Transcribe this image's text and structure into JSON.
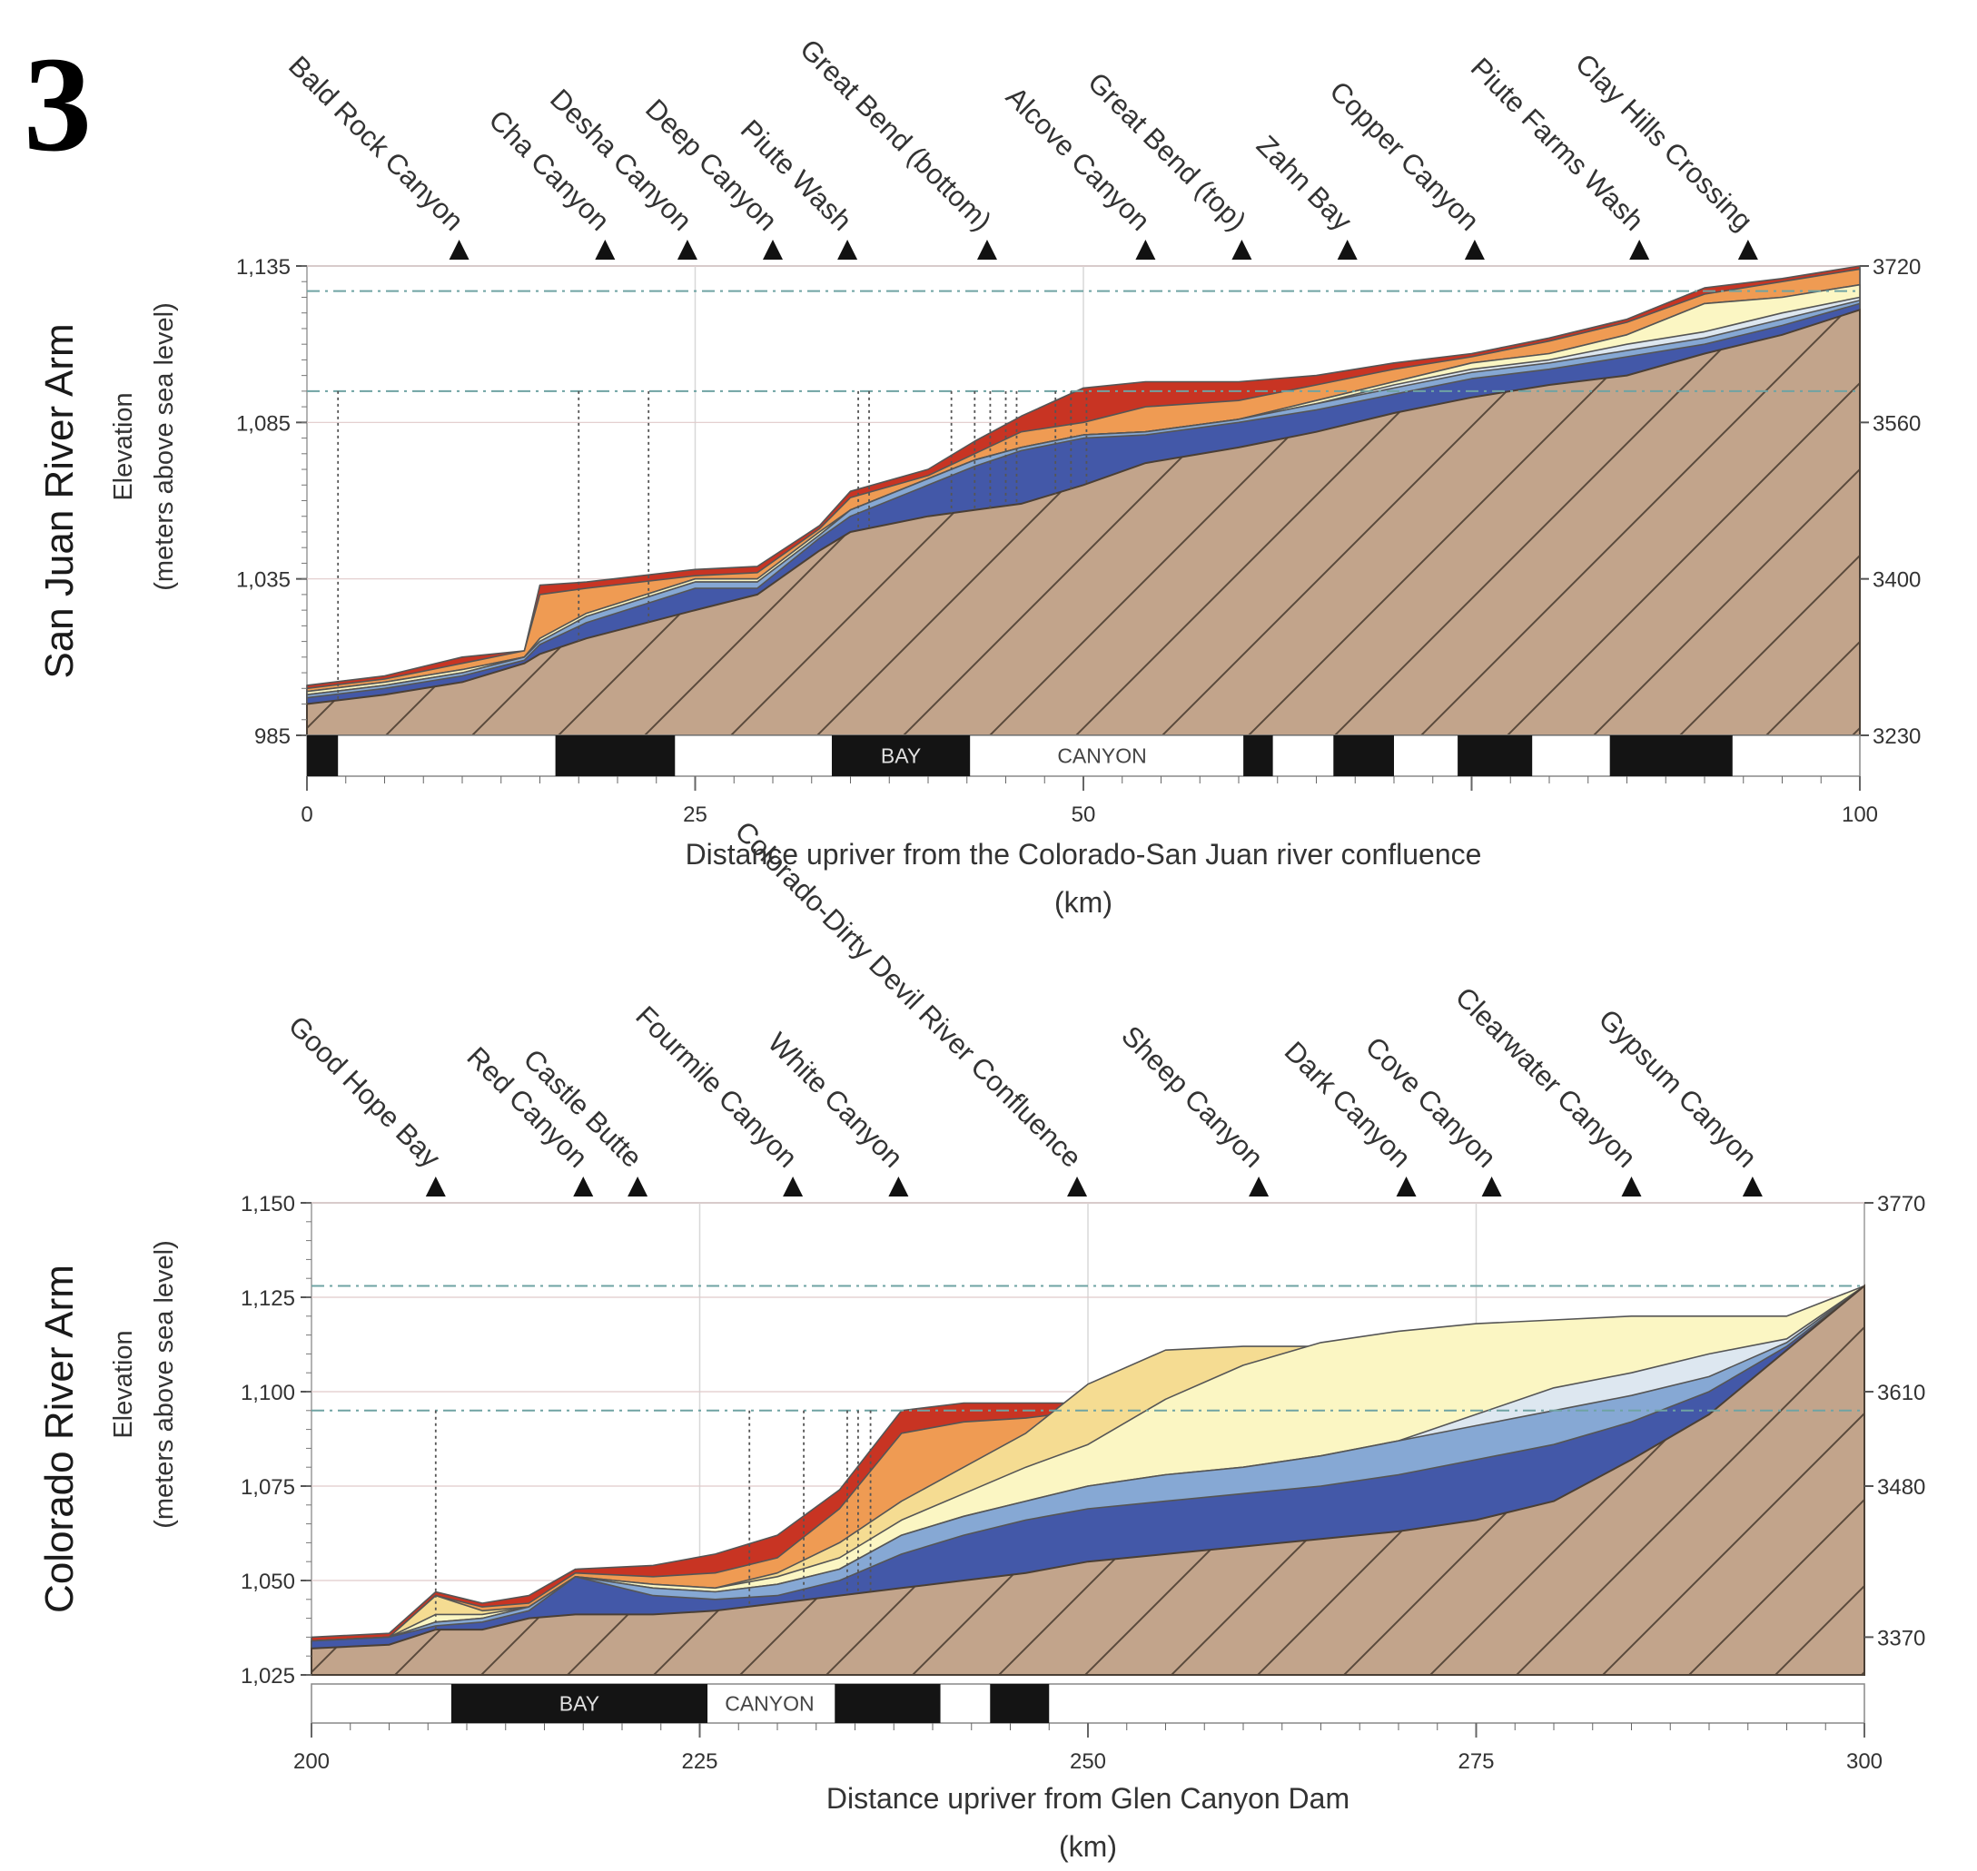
{
  "figure_label": "3",
  "colors": {
    "bedrock": "#c2a48b",
    "layer_dark_blue": "#4358a8",
    "layer_mid_blue": "#86a8d4",
    "layer_pale_blue": "#dde7f0",
    "layer_pale_yellow": "#fbf6c3",
    "layer_yellow": "#f5dc92",
    "layer_orange": "#ef9b53",
    "layer_red": "#c83423",
    "reference_line": "#6fa3a3"
  },
  "chart_data": [
    {
      "type": "area",
      "section_title": "San Juan River Arm",
      "ylabel_line1": "Elevation",
      "ylabel_line2": "(meters above sea level)",
      "xlabel_line1": "Distance upriver from the Colorado-San Juan river confluence",
      "xlabel_line2": "(km)",
      "xlim": [
        0,
        100
      ],
      "ylim": [
        985,
        1135
      ],
      "x_ticks": [
        "0",
        "25",
        "50",
        "100"
      ],
      "y_ticks": [
        "985",
        "1,035",
        "1,085",
        "1,135"
      ],
      "right_ticks": [
        "3230",
        "3400",
        "3560",
        "3720"
      ],
      "landmarks": [
        {
          "name": "Bald Rock Canyon",
          "x": 9.8
        },
        {
          "name": "Cha Canyon",
          "x": 19.2
        },
        {
          "name": "Desha Canyon",
          "x": 24.5
        },
        {
          "name": "Deep Canyon",
          "x": 30.0
        },
        {
          "name": "Piute Wash",
          "x": 34.8
        },
        {
          "name": "Great Bend (bottom)",
          "x": 43.8
        },
        {
          "name": "Alcove Canyon",
          "x": 54.0
        },
        {
          "name": "Great Bend (top)",
          "x": 60.2
        },
        {
          "name": "Zahn Bay",
          "x": 67.0
        },
        {
          "name": "Copper Canyon",
          "x": 75.2
        },
        {
          "name": "Piute Farms Wash",
          "x": 85.8
        },
        {
          "name": "Clay Hills Crossing",
          "x": 92.8
        }
      ],
      "bands": [
        {
          "x0": 0,
          "x1": 2,
          "label": ""
        },
        {
          "x0": 16,
          "x1": 23.7,
          "label": ""
        },
        {
          "x0": 33.8,
          "x1": 42.7,
          "label": "BAY"
        },
        {
          "x0": 60.3,
          "x1": 62.2,
          "label": ""
        },
        {
          "x0": 66.1,
          "x1": 70,
          "label": ""
        },
        {
          "x0": 74.1,
          "x1": 78.9,
          "label": ""
        },
        {
          "x0": 83.9,
          "x1": 91.8,
          "label": ""
        }
      ],
      "canyon_label": {
        "x": 51.2,
        "text": "CANYON"
      },
      "ref_lines": [
        1127,
        1095
      ],
      "core_sites": [
        2,
        17.5,
        22,
        35.5,
        36.2,
        41.5,
        43,
        44,
        45,
        45.7,
        48.2,
        49.2,
        50.2
      ],
      "surfaces": {
        "x": [
          0,
          5,
          10,
          14,
          15,
          18,
          25,
          29,
          33,
          35,
          40,
          43,
          46,
          50,
          54,
          60,
          65,
          70,
          75,
          80,
          85,
          90,
          95,
          100
        ],
        "bedrock": [
          995,
          998,
          1002,
          1008,
          1011,
          1016,
          1025,
          1030,
          1044,
          1050,
          1055,
          1057,
          1059,
          1065,
          1072,
          1077,
          1082,
          1088,
          1093,
          1097,
          1100,
          1107,
          1113,
          1121
        ],
        "dark_blue": [
          997,
          1000,
          1004,
          1009,
          1014,
          1021,
          1032,
          1032,
          1048,
          1055,
          1065,
          1071,
          1076,
          1080,
          1081,
          1085,
          1089,
          1094,
          1099,
          1102,
          1106,
          1110,
          1116,
          1123
        ],
        "mid_blue": [
          998,
          1001,
          1005,
          1010,
          1015,
          1023,
          1034,
          1034,
          1049,
          1057,
          1067,
          1073,
          1077,
          1081,
          1082,
          1086,
          1091,
          1096,
          1101,
          1104,
          1108,
          1112,
          1118,
          1124
        ],
        "pale_blue": [
          998,
          1001,
          1005,
          1010,
          1015,
          1023,
          1034,
          1034,
          1049,
          1057,
          1067,
          1073,
          1077,
          1081,
          1082,
          1086,
          1091,
          1097,
          1102,
          1105,
          1110,
          1114,
          1120,
          1125
        ],
        "pale_yellow": [
          999,
          1002,
          1006,
          1010,
          1016,
          1024,
          1035,
          1035,
          1050,
          1057,
          1067,
          1073,
          1077,
          1081,
          1082,
          1086,
          1092,
          1098,
          1104,
          1107,
          1113,
          1123,
          1125,
          1129
        ],
        "yellow": [
          999,
          1002,
          1006,
          1010,
          1016,
          1024,
          1035,
          1035,
          1050,
          1057,
          1067,
          1073,
          1077,
          1081,
          1082,
          1086,
          1092,
          1098,
          1104,
          1107,
          1113,
          1123,
          1125,
          1129
        ],
        "orange": [
          1000,
          1003,
          1008,
          1012,
          1030,
          1032,
          1036,
          1037,
          1051,
          1061,
          1068,
          1075,
          1082,
          1085,
          1090,
          1092,
          1097,
          1102,
          1106,
          1111,
          1117,
          1126,
          1130,
          1134
        ],
        "red": [
          1001,
          1004,
          1010,
          1012,
          1033,
          1034,
          1038,
          1039,
          1052,
          1063,
          1070,
          1079,
          1087,
          1096,
          1098,
          1098,
          1100,
          1104,
          1107,
          1112,
          1118,
          1128,
          1131,
          1135
        ]
      }
    },
    {
      "type": "area",
      "section_title": "Colorado River Arm",
      "ylabel_line1": "Elevation",
      "ylabel_line2": "(meters above sea level)",
      "xlabel_line1": "Distance upriver from Glen Canyon Dam",
      "xlabel_line2": "(km)",
      "xlim": [
        200,
        300
      ],
      "ylim": [
        1025,
        1150
      ],
      "x_ticks": [
        "200",
        "225",
        "250",
        "275",
        "300"
      ],
      "y_ticks": [
        "1,025",
        "1,050",
        "1,075",
        "1,100",
        "1,125",
        "1,150"
      ],
      "right_ticks": [
        "3370",
        "3480",
        "3610",
        "3770"
      ],
      "landmarks": [
        {
          "name": "Good Hope Bay",
          "x": 208
        },
        {
          "name": "Red Canyon",
          "x": 217.5
        },
        {
          "name": "Castle Butte",
          "x": 221
        },
        {
          "name": "Fourmile Canyon",
          "x": 231
        },
        {
          "name": "White Canyon",
          "x": 237.8
        },
        {
          "name": "Colorado-Dirty Devil River Confluence",
          "x": 249.3
        },
        {
          "name": "Sheep Canyon",
          "x": 261
        },
        {
          "name": "Dark Canyon",
          "x": 270.5
        },
        {
          "name": "Cove Canyon",
          "x": 276
        },
        {
          "name": "Clearwater Canyon",
          "x": 285
        },
        {
          "name": "Gypsum Canyon",
          "x": 292.8
        }
      ],
      "bands": [
        {
          "x0": 209,
          "x1": 225.5,
          "label": "BAY"
        },
        {
          "x0": 233.7,
          "x1": 240.5,
          "label": ""
        },
        {
          "x0": 243.7,
          "x1": 247.5,
          "label": ""
        }
      ],
      "canyon_label": {
        "x": 229.5,
        "text": "CANYON"
      },
      "ref_lines": [
        1128,
        1095
      ],
      "core_sites": [
        208,
        228.2,
        231.7,
        234.5,
        235.2,
        236
      ],
      "surfaces": {
        "x": [
          200,
          205,
          208,
          211,
          214,
          217,
          222,
          226,
          230,
          234,
          238,
          242,
          246,
          250,
          255,
          260,
          265,
          270,
          275,
          280,
          285,
          290,
          295,
          300
        ],
        "bedrock": [
          1032,
          1033,
          1037,
          1037,
          1040,
          1041,
          1041,
          1042,
          1044,
          1046,
          1048,
          1050,
          1052,
          1055,
          1057,
          1059,
          1061,
          1063,
          1066,
          1071,
          1082,
          1094,
          1111,
          1128
        ],
        "dark_blue": [
          1034,
          1035,
          1038,
          1039,
          1042,
          1051,
          1046,
          1045,
          1046,
          1050,
          1057,
          1062,
          1066,
          1069,
          1071,
          1073,
          1075,
          1078,
          1082,
          1086,
          1092,
          1100,
          1112,
          1128
        ],
        "mid_blue": [
          1034,
          1035,
          1039,
          1040,
          1043,
          1051,
          1048,
          1047,
          1049,
          1053,
          1062,
          1067,
          1071,
          1075,
          1078,
          1080,
          1083,
          1087,
          1091,
          1095,
          1099,
          1104,
          1113,
          1128
        ],
        "pale_blue": [
          1034,
          1035,
          1039,
          1040,
          1043,
          1051,
          1048,
          1047,
          1049,
          1053,
          1062,
          1067,
          1071,
          1075,
          1078,
          1080,
          1083,
          1087,
          1094,
          1101,
          1105,
          1110,
          1114,
          1128
        ],
        "pale_yellow": [
          1034,
          1035,
          1041,
          1041,
          1043,
          1051,
          1049,
          1048,
          1051,
          1056,
          1066,
          1073,
          1080,
          1086,
          1098,
          1107,
          1113,
          1116,
          1118,
          1119,
          1120,
          1120,
          1120,
          1128
        ],
        "yellow": [
          1034,
          1035,
          1046,
          1042,
          1043,
          1051,
          1049,
          1048,
          1052,
          1060,
          1071,
          1080,
          1089,
          1102,
          1111,
          1112,
          1112,
          1113,
          1113,
          1113,
          1113,
          1113,
          1113,
          1128
        ],
        "orange": [
          1034,
          1035,
          1046,
          1043,
          1044,
          1052,
          1051,
          1052,
          1056,
          1069,
          1089,
          1092,
          1093,
          1095,
          1096,
          1096,
          1096,
          1096,
          1096,
          1096,
          1096,
          1096,
          1096,
          1128
        ],
        "red": [
          1035,
          1036,
          1047,
          1044,
          1046,
          1053,
          1054,
          1057,
          1062,
          1074,
          1095,
          1097,
          1097,
          1097,
          1097,
          1097,
          1097,
          1097,
          1097,
          1097,
          1097,
          1097,
          1097,
          1128
        ]
      }
    }
  ]
}
